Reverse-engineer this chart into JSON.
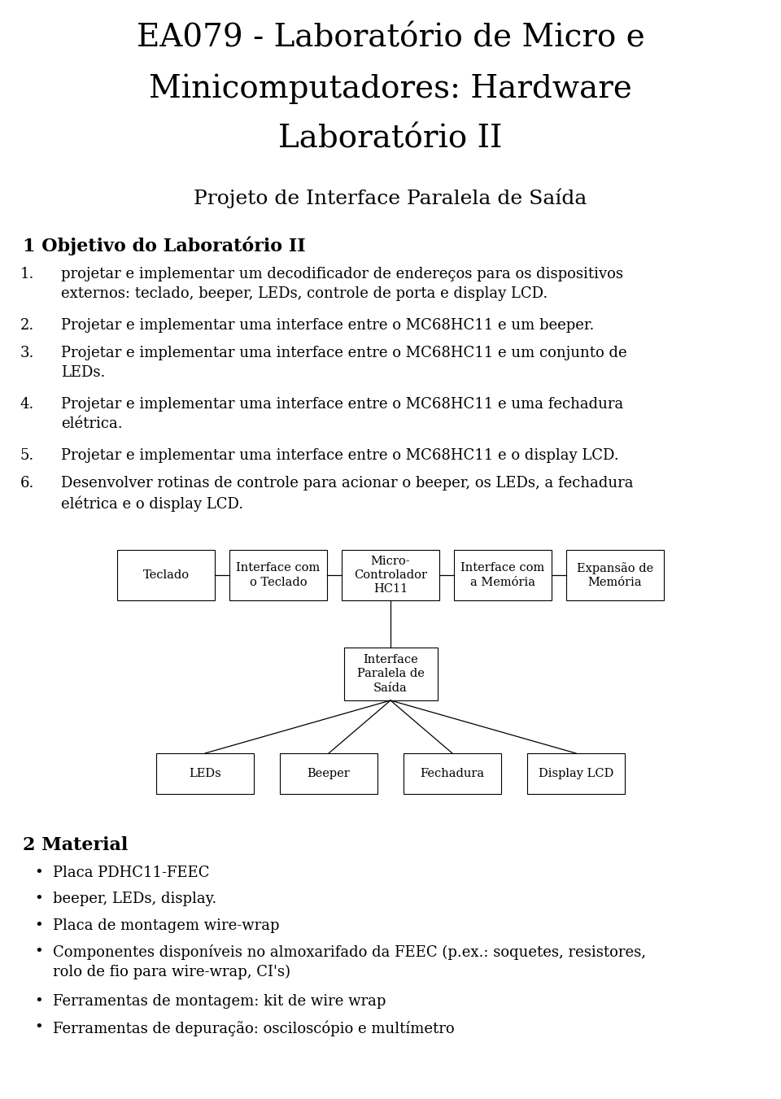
{
  "title_line1": "EA079 - Laboratório de Micro e",
  "title_line2": "Minicomputadores: Hardware",
  "title_line3": "Laboratório II",
  "subtitle": "Projeto de Interface Paralela de Saída",
  "section1_title": "1 Objetivo do Laboratório II",
  "items": [
    "projetar e implementar um decodificador de endereços para os dispositivos\nexternos: teclado, beeper, LEDs, controle de porta e display LCD.",
    "Projetar e implementar uma interface entre o MC68HC11 e um beeper.",
    "Projetar e implementar uma interface entre o MC68HC11 e um conjunto de\nLEDs.",
    "Projetar e implementar uma interface entre o MC68HC11 e uma fechadura\nelétrica.",
    "Projetar e implementar uma interface entre o MC68HC11 e o display LCD.",
    "Desenvolver rotinas de controle para acionar o beeper, os LEDs, a fechadura\nelétrica e o display LCD."
  ],
  "section2_title": "2 Material",
  "bullet_items": [
    "Placa PDHC11-FEEC",
    "beeper, LEDs, display.",
    "Placa de montagem wire-wrap",
    "Componentes disponíveis no almoxarifado da FEEC (p.ex.: soquetes, resistores,\nrolo de fio para wire-wrap, CI's)",
    "Ferramentas de montagem: kit de wire wrap",
    "Ferramentas de depuração: osciloscópio e multímetro"
  ],
  "bg_color": "#ffffff",
  "text_color": "#000000",
  "box_color": "#ffffff",
  "box_edge_color": "#000000",
  "top_row_boxes": [
    "Teclado",
    "Interface com\no Teclado",
    "Micro-\nControlador\nHC11",
    "Interface com\na Memória",
    "Expansão de\nMemória"
  ],
  "middle_box": "Interface\nParalela de\nSaída",
  "bottom_boxes": [
    "LEDs",
    "Beeper",
    "Fechadura",
    "Display LCD"
  ]
}
